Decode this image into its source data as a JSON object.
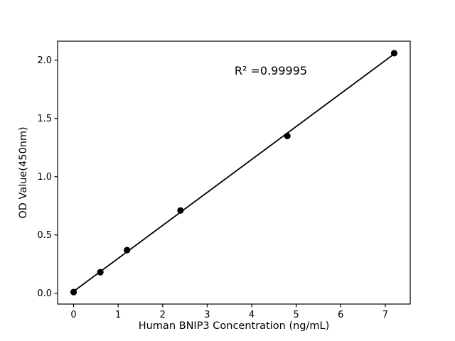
{
  "figure": {
    "background_color": "#ffffff",
    "foreground_color": "#000000"
  },
  "chart_data": {
    "type": "scatter",
    "title": "",
    "xlabel": "Human BNIP3 Concentration (ng/mL)",
    "ylabel": "OD Value(450nm)",
    "annotation": {
      "text": "R² =0.99995",
      "x": 4.43,
      "y": 1.91
    },
    "r_squared": 0.99995,
    "x": [
      0,
      0.6,
      1.2,
      2.4,
      4.8,
      7.2
    ],
    "y": [
      0.01,
      0.18,
      0.37,
      0.71,
      1.35,
      2.06
    ],
    "fit_line": {
      "slope": 0.283,
      "intercept": 0.016,
      "x_start": 0,
      "x_end": 7.2
    },
    "xticks": [
      0,
      1,
      2,
      3,
      4,
      5,
      6,
      7
    ],
    "xtick_labels": [
      "0",
      "1",
      "2",
      "3",
      "4",
      "5",
      "6",
      "7"
    ],
    "yticks": [
      0.0,
      0.5,
      1.0,
      1.5,
      2.0
    ],
    "ytick_labels": [
      "0.0",
      "0.5",
      "1.0",
      "1.5",
      "2.0"
    ],
    "xlim": [
      -0.36,
      7.56
    ],
    "ylim": [
      -0.093,
      2.163
    ],
    "grid": false,
    "legend": null,
    "marker_color": "#000000",
    "line_color": "#000000"
  }
}
